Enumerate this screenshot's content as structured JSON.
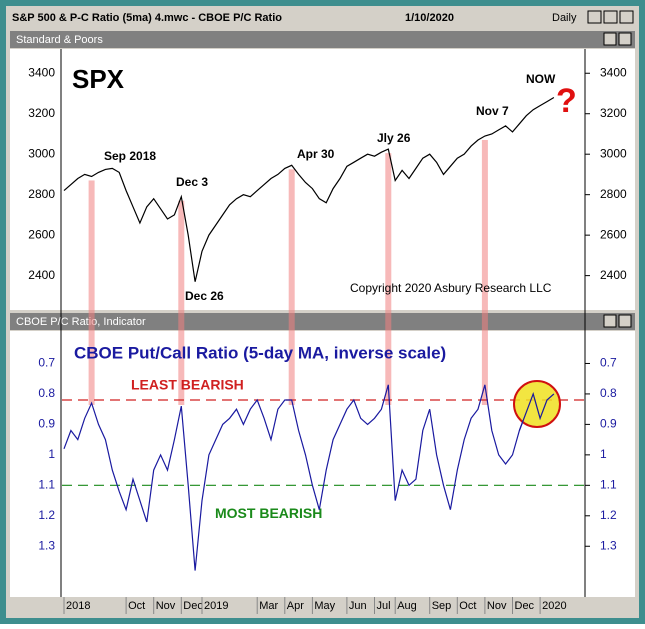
{
  "window": {
    "title": "S&P 500 & P-C Ratio (5ma) 4.mwc - CBOE P/C Ratio",
    "date": "1/10/2020",
    "period": "Daily"
  },
  "chart_data": [
    {
      "type": "line",
      "panel_title": "Standard & Poors",
      "title": "SPX",
      "color": "#000000",
      "values": [
        2820,
        2850,
        2880,
        2900,
        2890,
        2910,
        2925,
        2930,
        2910,
        2820,
        2740,
        2660,
        2740,
        2780,
        2730,
        2680,
        2700,
        2790,
        2600,
        2370,
        2520,
        2600,
        2650,
        2700,
        2750,
        2780,
        2800,
        2790,
        2820,
        2850,
        2880,
        2900,
        2930,
        2945,
        2900,
        2860,
        2830,
        2780,
        2760,
        2830,
        2880,
        2940,
        2960,
        2980,
        3000,
        2990,
        3010,
        3025,
        2870,
        2920,
        2880,
        2930,
        2980,
        3000,
        2960,
        2900,
        2940,
        2980,
        3000,
        3040,
        3070,
        3090,
        3100,
        3120,
        3140,
        3110,
        3150,
        3190,
        3220,
        3240,
        3260,
        3280
      ],
      "ylim": [
        2240,
        3505
      ],
      "yticks": [
        2400,
        2600,
        2800,
        3000,
        3200,
        3400
      ],
      "annotations": [
        "Sep 2018",
        "Dec 3",
        "Dec 26",
        "Apr 30",
        "Jly 26",
        "Nov 7",
        "NOW",
        "?",
        "Copyright 2020 Asbury Research LLC"
      ]
    },
    {
      "type": "line",
      "panel_title": "CBOE P/C Ratio, Indicator",
      "title": "CBOE Put/Call Ratio (5-day MA, inverse scale)",
      "color": "#1a1aa0",
      "categories": [
        "2018",
        null,
        null,
        null,
        null,
        null,
        null,
        null,
        null,
        "Oct",
        null,
        null,
        null,
        "Nov",
        null,
        null,
        null,
        "Dec",
        null,
        null,
        "2019",
        null,
        null,
        null,
        null,
        null,
        null,
        null,
        "Mar",
        null,
        null,
        null,
        "Apr",
        null,
        null,
        null,
        "May",
        null,
        null,
        null,
        null,
        "Jun",
        null,
        null,
        null,
        "Jul",
        null,
        null,
        "Aug",
        null,
        null,
        null,
        null,
        "Sep",
        null,
        null,
        null,
        "Oct",
        null,
        null,
        null,
        "Nov",
        null,
        null,
        null,
        "Dec",
        null,
        null,
        null,
        "2020",
        null,
        null
      ],
      "values": [
        0.98,
        0.92,
        0.95,
        0.88,
        0.83,
        0.9,
        0.95,
        1.05,
        1.12,
        1.18,
        1.08,
        1.15,
        1.22,
        1.05,
        1.0,
        1.05,
        0.95,
        0.84,
        1.1,
        1.38,
        1.15,
        1.0,
        0.95,
        0.9,
        0.88,
        0.85,
        0.9,
        0.85,
        0.82,
        0.88,
        0.95,
        0.85,
        0.82,
        0.82,
        0.92,
        1.0,
        1.1,
        1.18,
        1.05,
        0.95,
        0.9,
        0.85,
        0.82,
        0.88,
        0.9,
        0.88,
        0.85,
        0.77,
        1.15,
        1.05,
        1.1,
        1.08,
        0.92,
        0.85,
        1.0,
        1.1,
        1.18,
        1.05,
        0.95,
        0.88,
        0.85,
        0.77,
        0.92,
        1.0,
        1.03,
        1.0,
        0.92,
        0.86,
        0.8,
        0.88,
        0.82,
        0.8
      ],
      "ylim": [
        1.46,
        0.6
      ],
      "yticks": [
        0.7,
        0.8,
        0.9,
        1.0,
        1.1,
        1.2,
        1.3
      ],
      "reference_lines": [
        {
          "label": "LEAST BEARISH",
          "value": 0.82,
          "color": "#d02020"
        },
        {
          "label": "MOST BEARISH",
          "value": 1.1,
          "color": "#1a8a1a"
        }
      ]
    }
  ]
}
